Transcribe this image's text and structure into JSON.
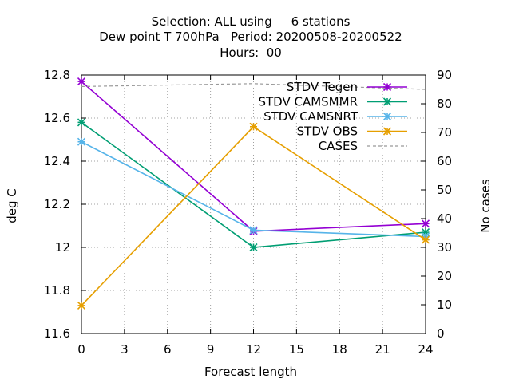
{
  "chart_data": {
    "type": "line",
    "title": [
      "Selection: ALL using     6 stations",
      "Dew point T 700hPa   Period: 20200508-20200522",
      "Hours:  00"
    ],
    "xlabel": "Forecast length",
    "ylabel": "deg C",
    "y2label": "No cases",
    "xlim": [
      0,
      24
    ],
    "ylim": [
      11.6,
      12.8
    ],
    "y2lim": [
      0,
      90
    ],
    "xticks": [
      "0",
      "3",
      "6",
      "9",
      "12",
      "15",
      "18",
      "21",
      "24"
    ],
    "yticks": [
      "11.6",
      "11.8",
      "12",
      "12.2",
      "12.4",
      "12.6",
      "12.8"
    ],
    "y2ticks": [
      "0",
      "10",
      "20",
      "30",
      "40",
      "50",
      "60",
      "70",
      "80",
      "90"
    ],
    "grid": true,
    "legend_position": "top-right",
    "series": [
      {
        "name": "STDV Tegen",
        "color": "#9400d3",
        "axis": "y",
        "style": "solid",
        "marker": true,
        "x": [
          0,
          12,
          24
        ],
        "values": [
          12.77,
          12.075,
          12.11
        ]
      },
      {
        "name": "STDV CAMSMMR",
        "color": "#009e73",
        "axis": "y",
        "style": "solid",
        "marker": true,
        "x": [
          0,
          12,
          24
        ],
        "values": [
          12.58,
          12.0,
          12.07
        ]
      },
      {
        "name": "STDV CAMSNRT",
        "color": "#56b4e9",
        "axis": "y",
        "style": "solid",
        "marker": true,
        "x": [
          0,
          12,
          24
        ],
        "values": [
          12.49,
          12.08,
          12.05
        ]
      },
      {
        "name": "STDV OBS",
        "color": "#e69f00",
        "axis": "y",
        "style": "solid",
        "marker": true,
        "x": [
          0,
          12,
          24
        ],
        "values": [
          11.73,
          12.56,
          12.035
        ]
      },
      {
        "name": "CASES",
        "color": "#999999",
        "axis": "y2",
        "style": "dashed",
        "marker": false,
        "x": [
          0,
          12,
          24
        ],
        "values": [
          86,
          87,
          85
        ]
      }
    ]
  }
}
